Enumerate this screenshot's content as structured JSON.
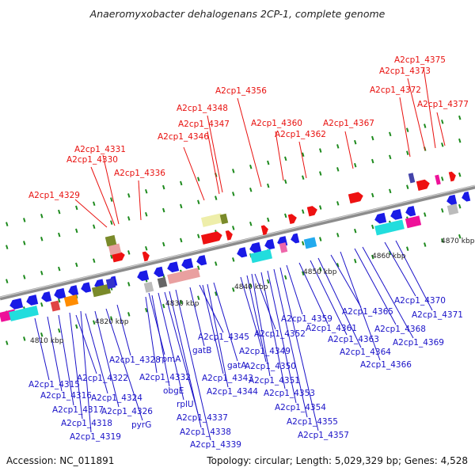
{
  "title": "Anaeromyxobacter dehalogenans 2CP-1, complete genome",
  "footer": {
    "accession": "Accession: NC_011891",
    "summary": "Topology: circular; Length: 5,029,329 bp; Genes: 4,528"
  },
  "kbp_labels": [
    "4810 kbp",
    "4820 kbp",
    "4830 kbp",
    "4840 kbp",
    "4850 kbp",
    "4860 kbp",
    "4870 kbp"
  ],
  "colors": {
    "forward_label": "#e8110f",
    "reverse_label": "#1a12c8",
    "backbone": "#8c8c8c",
    "tick": "#1d8a1d"
  },
  "forward_genes": [
    "A2cp1_4329",
    "A2cp1_4330",
    "A2cp1_4331",
    "A2cp1_4336",
    "A2cp1_4346",
    "A2cp1_4347",
    "A2cp1_4348",
    "A2cp1_4356",
    "A2cp1_4360",
    "A2cp1_4362",
    "A2cp1_4367",
    "A2cp1_4372",
    "A2cp1_4373",
    "A2cp1_4375",
    "A2cp1_4377"
  ],
  "reverse_genes": [
    "A2cp1_4315",
    "A2cp1_4316",
    "A2cp1_4317",
    "A2cp1_4318",
    "A2cp1_4319",
    "A2cp1_4322",
    "A2cp1_4324",
    "A2cp1_4326",
    "pyrG",
    "A2cp1_4328",
    "rpmA",
    "A2cp1_4332",
    "obgE",
    "rplU",
    "A2cp1_4337",
    "A2cp1_4338",
    "A2cp1_4339",
    "gatB",
    "A2cp1_4345",
    "gatA",
    "A2cp1_4343",
    "A2cp1_4344",
    "A2cp1_4349",
    "A2cp1_4350",
    "A2cp1_4351",
    "A2cp1_4352",
    "A2cp1_4353",
    "A2cp1_4354",
    "A2cp1_4355",
    "A2cp1_4357",
    "A2cp1_4359",
    "A2cp1_4361",
    "A2cp1_4363",
    "A2cp1_4364",
    "A2cp1_4365",
    "A2cp1_4366",
    "A2cp1_4368",
    "A2cp1_4369",
    "A2cp1_4370",
    "A2cp1_4371"
  ]
}
